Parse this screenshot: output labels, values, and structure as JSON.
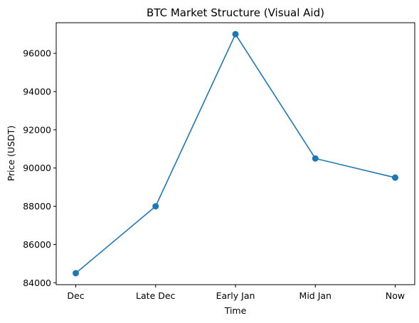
{
  "chart_data": {
    "type": "line",
    "title": "BTC Market Structure (Visual Aid)",
    "xlabel": "Time",
    "ylabel": "Price (USDT)",
    "categories": [
      "Dec",
      "Late Dec",
      "Early Jan",
      "Mid Jan",
      "Now"
    ],
    "series": [
      {
        "values": [
          84500,
          88000,
          97000,
          90500,
          89500
        ]
      }
    ],
    "yticks": [
      84000,
      86000,
      88000,
      90000,
      92000,
      94000,
      96000
    ],
    "ylim": [
      83900,
      97600
    ],
    "grid": false,
    "line_color": "#1f77b4",
    "marker": "circle"
  }
}
